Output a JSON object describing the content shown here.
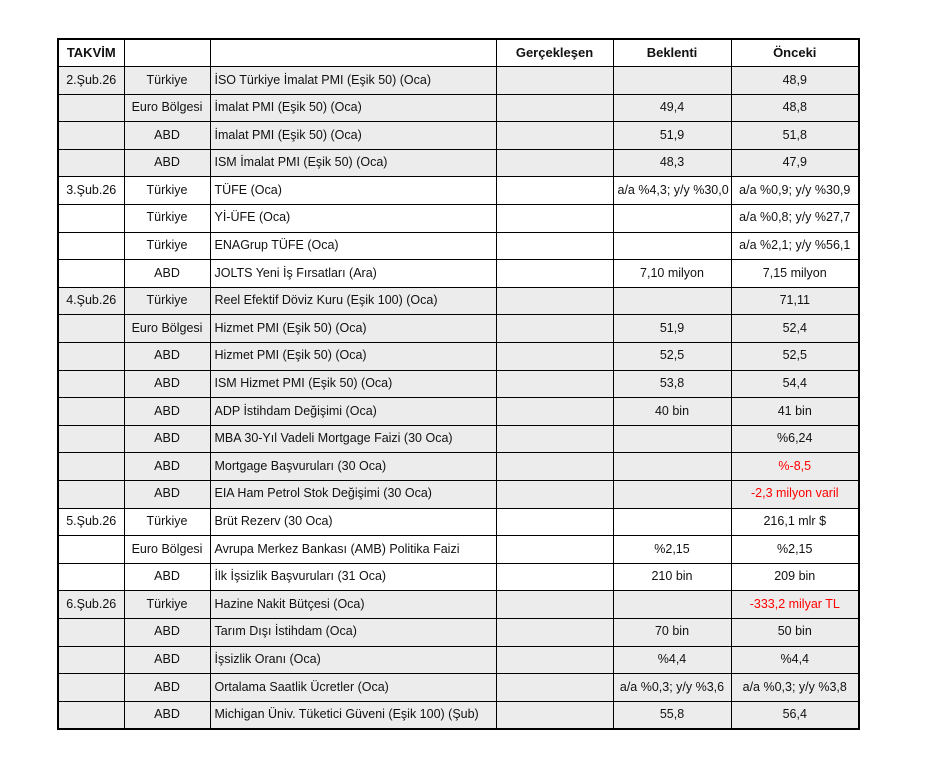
{
  "colors": {
    "band_gray": "#ececec",
    "negative_red": "#ff0000",
    "border": "#000000",
    "text": "#111111"
  },
  "table": {
    "headers": {
      "takvim": "TAKVİM",
      "region": "",
      "event": "",
      "gerceklesen": "Gerçekleşen",
      "beklenti": "Beklenti",
      "onceki": "Önceki"
    },
    "rows": [
      {
        "date": "2.Şub.26",
        "region": "Türkiye",
        "event": "İSO Türkiye İmalat PMI (Eşik 50) (Oca)",
        "gerceklesen": "",
        "beklenti": "",
        "onceki": "48,9",
        "onceki_red": false,
        "shaded": true
      },
      {
        "date": "",
        "region": "Euro Bölgesi",
        "event": "İmalat PMI (Eşik 50) (Oca)",
        "gerceklesen": "",
        "beklenti": "49,4",
        "onceki": "48,8",
        "onceki_red": false,
        "shaded": true
      },
      {
        "date": "",
        "region": "ABD",
        "event": "İmalat PMI (Eşik 50) (Oca)",
        "gerceklesen": "",
        "beklenti": "51,9",
        "onceki": "51,8",
        "onceki_red": false,
        "shaded": true
      },
      {
        "date": "",
        "region": "ABD",
        "event": "ISM İmalat PMI (Eşik 50) (Oca)",
        "gerceklesen": "",
        "beklenti": "48,3",
        "onceki": "47,9",
        "onceki_red": false,
        "shaded": true
      },
      {
        "date": "3.Şub.26",
        "region": "Türkiye",
        "event": "TÜFE (Oca)",
        "gerceklesen": "",
        "beklenti": "a/a %4,3; y/y %30,0",
        "onceki": "a/a %0,9; y/y %30,9",
        "onceki_red": false,
        "shaded": false
      },
      {
        "date": "",
        "region": "Türkiye",
        "event": "Yİ-ÜFE (Oca)",
        "gerceklesen": "",
        "beklenti": "",
        "onceki": "a/a %0,8; y/y %27,7",
        "onceki_red": false,
        "shaded": false
      },
      {
        "date": "",
        "region": "Türkiye",
        "event": "ENAGrup TÜFE (Oca)",
        "gerceklesen": "",
        "beklenti": "",
        "onceki": "a/a %2,1; y/y %56,1",
        "onceki_red": false,
        "shaded": false
      },
      {
        "date": "",
        "region": "ABD",
        "event": "JOLTS Yeni İş Fırsatları (Ara)",
        "gerceklesen": "",
        "beklenti": "7,10 milyon",
        "onceki": "7,15 milyon",
        "onceki_red": false,
        "shaded": false
      },
      {
        "date": "4.Şub.26",
        "region": "Türkiye",
        "event": "Reel Efektif Döviz Kuru (Eşik 100) (Oca)",
        "gerceklesen": "",
        "beklenti": "",
        "onceki": "71,11",
        "onceki_red": false,
        "shaded": true
      },
      {
        "date": "",
        "region": "Euro Bölgesi",
        "event": "Hizmet PMI (Eşik 50) (Oca)",
        "gerceklesen": "",
        "beklenti": "51,9",
        "onceki": "52,4",
        "onceki_red": false,
        "shaded": true
      },
      {
        "date": "",
        "region": "ABD",
        "event": "Hizmet PMI (Eşik 50) (Oca)",
        "gerceklesen": "",
        "beklenti": "52,5",
        "onceki": "52,5",
        "onceki_red": false,
        "shaded": true
      },
      {
        "date": "",
        "region": "ABD",
        "event": "ISM Hizmet PMI (Eşik 50) (Oca)",
        "gerceklesen": "",
        "beklenti": "53,8",
        "onceki": "54,4",
        "onceki_red": false,
        "shaded": true
      },
      {
        "date": "",
        "region": "ABD",
        "event": "ADP İstihdam Değişimi (Oca)",
        "gerceklesen": "",
        "beklenti": "40 bin",
        "onceki": "41 bin",
        "onceki_red": false,
        "shaded": true
      },
      {
        "date": "",
        "region": "ABD",
        "event": "MBA 30-Yıl Vadeli Mortgage Faizi (30 Oca)",
        "gerceklesen": "",
        "beklenti": "",
        "onceki": "%6,24",
        "onceki_red": false,
        "shaded": true
      },
      {
        "date": "",
        "region": "ABD",
        "event": "Mortgage Başvuruları (30 Oca)",
        "gerceklesen": "",
        "beklenti": "",
        "onceki": "%-8,5",
        "onceki_red": true,
        "shaded": true
      },
      {
        "date": "",
        "region": "ABD",
        "event": "EIA Ham Petrol Stok Değişimi (30 Oca)",
        "gerceklesen": "",
        "beklenti": "",
        "onceki": "-2,3 milyon varil",
        "onceki_red": true,
        "shaded": true
      },
      {
        "date": "5.Şub.26",
        "region": "Türkiye",
        "event": "Brüt Rezerv (30 Oca)",
        "gerceklesen": "",
        "beklenti": "",
        "onceki": "216,1 mlr $",
        "onceki_red": false,
        "shaded": false
      },
      {
        "date": "",
        "region": "Euro Bölgesi",
        "event": "Avrupa Merkez Bankası (AMB) Politika Faizi",
        "gerceklesen": "",
        "beklenti": "%2,15",
        "onceki": "%2,15",
        "onceki_red": false,
        "shaded": false
      },
      {
        "date": "",
        "region": "ABD",
        "event": "İlk İşsizlik Başvuruları (31 Oca)",
        "gerceklesen": "",
        "beklenti": "210 bin",
        "onceki": "209 bin",
        "onceki_red": false,
        "shaded": false
      },
      {
        "date": "6.Şub.26",
        "region": "Türkiye",
        "event": "Hazine Nakit Bütçesi (Oca)",
        "gerceklesen": "",
        "beklenti": "",
        "onceki": "-333,2 milyar TL",
        "onceki_red": true,
        "shaded": true
      },
      {
        "date": "",
        "region": "ABD",
        "event": "Tarım Dışı İstihdam (Oca)",
        "gerceklesen": "",
        "beklenti": "70 bin",
        "onceki": "50 bin",
        "onceki_red": false,
        "shaded": true
      },
      {
        "date": "",
        "region": "ABD",
        "event": "İşsizlik Oranı (Oca)",
        "gerceklesen": "",
        "beklenti": "%4,4",
        "onceki": "%4,4",
        "onceki_red": false,
        "shaded": true
      },
      {
        "date": "",
        "region": "ABD",
        "event": "Ortalama Saatlik Ücretler (Oca)",
        "gerceklesen": "",
        "beklenti": "a/a %0,3; y/y %3,6",
        "onceki": "a/a %0,3; y/y %3,8",
        "onceki_red": false,
        "shaded": true
      },
      {
        "date": "",
        "region": "ABD",
        "event": "Michigan Üniv. Tüketici Güveni (Eşik 100) (Şub)",
        "gerceklesen": "",
        "beklenti": "55,8",
        "onceki": "56,4",
        "onceki_red": false,
        "shaded": true
      }
    ]
  }
}
